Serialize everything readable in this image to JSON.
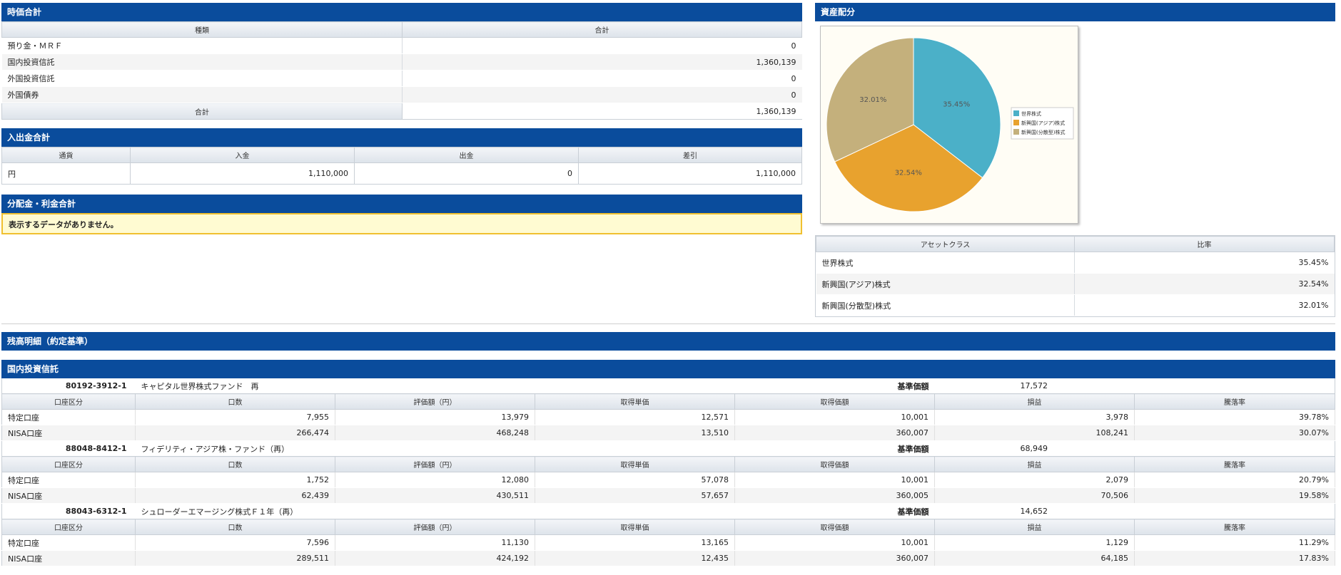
{
  "market_total": {
    "title": "時価合計",
    "headers": [
      "種類",
      "合計"
    ],
    "rows": [
      {
        "label": "預り金・ＭＲＦ",
        "value": "0"
      },
      {
        "label": "国内投資信託",
        "value": "1,360,139"
      },
      {
        "label": "外国投資信託",
        "value": "0"
      },
      {
        "label": "外国債券",
        "value": "0"
      }
    ],
    "total_label": "合計",
    "total_value": "1,360,139"
  },
  "cash_flow": {
    "title": "入出金合計",
    "headers": [
      "通貨",
      "入金",
      "出金",
      "差引"
    ],
    "row": {
      "currency": "円",
      "deposit": "1,110,000",
      "withdrawal": "0",
      "net": "1,110,000"
    }
  },
  "distributions": {
    "title": "分配金・利金合計",
    "message": "表示するデータがありません。"
  },
  "allocation": {
    "title": "資産配分",
    "headers": [
      "アセットクラス",
      "比率"
    ],
    "rows": [
      {
        "label": "世界株式",
        "value": "35.45%"
      },
      {
        "label": "新興国(アジア)株式",
        "value": "32.54%"
      },
      {
        "label": "新興国(分散型)株式",
        "value": "32.01%"
      }
    ]
  },
  "chart_data": {
    "type": "pie",
    "categories": [
      "世界株式",
      "新興国(アジア)株式",
      "新興国(分散型)株式"
    ],
    "values": [
      35.45,
      32.54,
      32.01
    ],
    "labels": [
      "35.45%",
      "32.54%",
      "32.01%"
    ],
    "colors": [
      "#4bb0c8",
      "#e8a22e",
      "#c4b07c"
    ],
    "legend_position": "right"
  },
  "detail": {
    "title": "残高明細（約定基準）",
    "section_title": "国内投資信託",
    "kijun_label": "基準価額",
    "headers": [
      "口座区分",
      "口数",
      "評価額（円）",
      "取得単価",
      "取得価額",
      "損益",
      "騰落率"
    ],
    "funds": [
      {
        "code": "80192-3912-1",
        "name": "キャピタル世界株式ファンド　再",
        "kijun": "17,572",
        "rows": [
          [
            "特定口座",
            "7,955",
            "13,979",
            "12,571",
            "10,001",
            "3,978",
            "39.78%"
          ],
          [
            "NISA口座",
            "266,474",
            "468,248",
            "13,510",
            "360,007",
            "108,241",
            "30.07%"
          ]
        ]
      },
      {
        "code": "88048-8412-1",
        "name": "フィデリティ・アジア株・ファンド（再）",
        "kijun": "68,949",
        "rows": [
          [
            "特定口座",
            "1,752",
            "12,080",
            "57,078",
            "10,001",
            "2,079",
            "20.79%"
          ],
          [
            "NISA口座",
            "62,439",
            "430,511",
            "57,657",
            "360,005",
            "70,506",
            "19.58%"
          ]
        ]
      },
      {
        "code": "88043-6312-1",
        "name": "シュローダーエマージング株式Ｆ１年（再）",
        "kijun": "14,652",
        "rows": [
          [
            "特定口座",
            "7,596",
            "11,130",
            "13,165",
            "10,001",
            "1,129",
            "11.29%"
          ],
          [
            "NISA口座",
            "289,511",
            "424,192",
            "12,435",
            "360,007",
            "64,185",
            "17.83%"
          ]
        ]
      }
    ]
  }
}
